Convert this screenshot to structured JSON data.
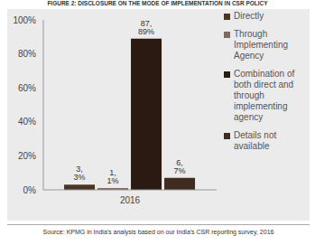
{
  "chart_data": {
    "type": "bar",
    "title": "FIGURE 2: DISCLOSURE ON THE MODE OF IMPLEMENTATION IN CSR POLICY",
    "source": "Source: KPMG in India's analysis based on our India's CSR reporting survey, 2016",
    "categories": [
      "2016"
    ],
    "series": [
      {
        "name": "Directly",
        "color": "#4a3426",
        "values": [
          3
        ],
        "value_labels": [
          "3, 3%"
        ]
      },
      {
        "name": "Through Implementing Agency",
        "color": "#7d6b5d",
        "values": [
          1
        ],
        "value_labels": [
          "1, 1%"
        ]
      },
      {
        "name": "Combination of both direct and through implementing agency",
        "color": "#2a1a12",
        "values": [
          89
        ],
        "value_labels": [
          "87, 89%"
        ]
      },
      {
        "name": "Details not available",
        "color": "#3e2c20",
        "values": [
          7
        ],
        "value_labels": [
          "6, 7%"
        ]
      }
    ],
    "ylim": [
      0,
      100
    ],
    "yticks": [
      {
        "value": 0,
        "label": "0%"
      },
      {
        "value": 20,
        "label": "20%"
      },
      {
        "value": 40,
        "label": "40%"
      },
      {
        "value": 60,
        "label": "60%"
      },
      {
        "value": 80,
        "label": "80%"
      },
      {
        "value": 100,
        "label": "100%"
      }
    ],
    "grid": false,
    "data_labels": true,
    "legend": "right"
  }
}
